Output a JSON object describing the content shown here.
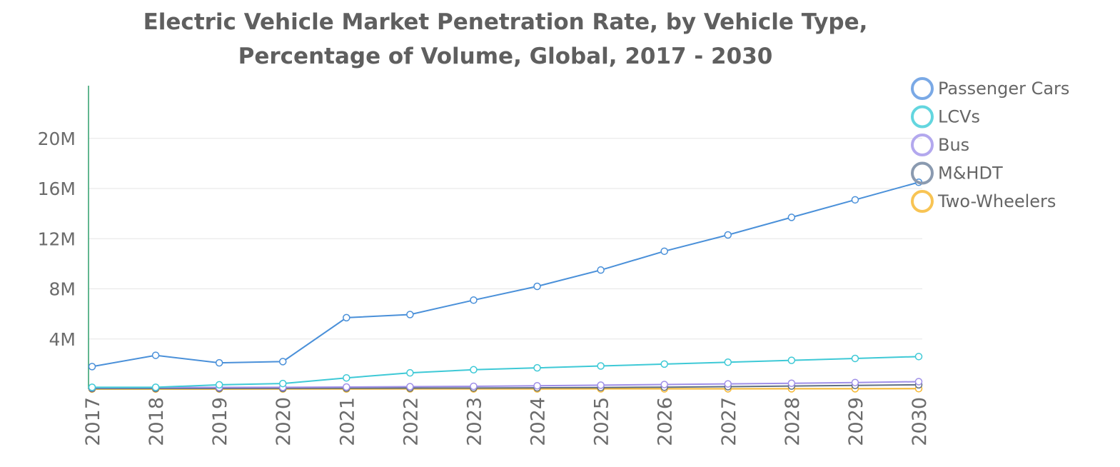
{
  "chart_data": {
    "type": "line",
    "title": "Electric Vehicle Market Penetration Rate, by Vehicle Type,",
    "subtitle": "Percentage of Volume, Global, 2017 - 2030",
    "xlabel": "",
    "ylabel": "",
    "categories": [
      "2017",
      "2018",
      "2019",
      "2020",
      "2021",
      "2022",
      "2023",
      "2024",
      "2025",
      "2026",
      "2027",
      "2028",
      "2029",
      "2030"
    ],
    "yticks": [
      {
        "value": 4000000,
        "label": "4M"
      },
      {
        "value": 8000000,
        "label": "8M"
      },
      {
        "value": 12000000,
        "label": "12M"
      },
      {
        "value": 16000000,
        "label": "16M"
      },
      {
        "value": 20000000,
        "label": "20M"
      }
    ],
    "ylim": [
      0,
      24200000
    ],
    "grid": true,
    "legend_position": "top-right",
    "series": [
      {
        "name": "Passenger Cars",
        "color": "#4a90d9",
        "legend_color": "#7aa9e6",
        "values": [
          1800000,
          2700000,
          2100000,
          2200000,
          5700000,
          5950000,
          7100000,
          8200000,
          9500000,
          11000000,
          12300000,
          13700000,
          15100000,
          16500000
        ]
      },
      {
        "name": "LCVs",
        "color": "#3ec9d6",
        "legend_color": "#63d6df",
        "values": [
          150000,
          150000,
          350000,
          450000,
          900000,
          1300000,
          1550000,
          1700000,
          1850000,
          2000000,
          2150000,
          2300000,
          2450000,
          2600000
        ]
      },
      {
        "name": "Bus",
        "color": "#9f8fe8",
        "legend_color": "#b3a8ee",
        "values": [
          120000,
          130000,
          140000,
          150000,
          170000,
          200000,
          230000,
          270000,
          320000,
          370000,
          420000,
          470000,
          530000,
          600000
        ]
      },
      {
        "name": "M&HDT",
        "color": "#5f6f80",
        "legend_color": "#8a9ab0",
        "values": [
          50000,
          55000,
          60000,
          65000,
          75000,
          85000,
          95000,
          110000,
          130000,
          160000,
          200000,
          250000,
          300000,
          350000
        ]
      },
      {
        "name": "Two-Wheelers",
        "color": "#f5b730",
        "legend_color": "#f8c454",
        "values": [
          10000,
          10000,
          10000,
          12000,
          15000,
          18000,
          20000,
          22000,
          25000,
          28000,
          30000,
          33000,
          36000,
          40000
        ]
      }
    ]
  }
}
